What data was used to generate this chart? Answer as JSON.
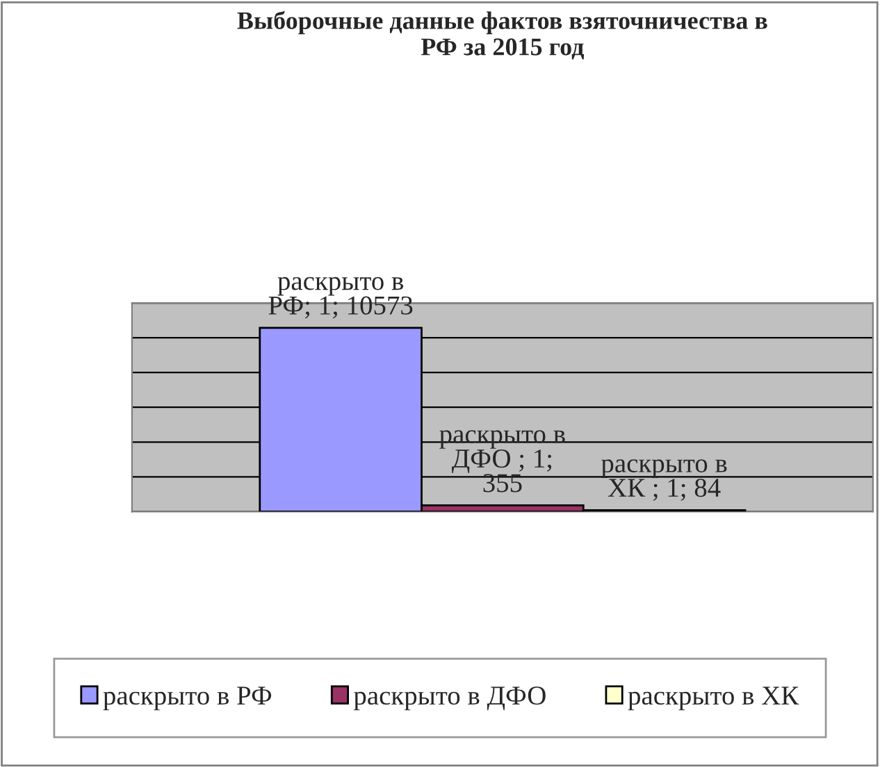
{
  "chart_data": {
    "type": "bar",
    "title": "Выборочные данные фактов взяточничества в\nРФ за 2015 год",
    "categories": [
      null
    ],
    "series": [
      {
        "name": "раскрыто в РФ",
        "color": "#9999ff",
        "values": [
          10573
        ],
        "value_labels": [
          "раскрыто в\nРФ; 1; 10573"
        ]
      },
      {
        "name": "раскрыто в ДФО",
        "color": "#993366",
        "values": [
          355
        ],
        "value_labels": [
          "раскрыто в\nДФО ; 1;\n355"
        ]
      },
      {
        "name": "раскрыто в ХК",
        "color": "#ffffcc",
        "values": [
          84
        ],
        "value_labels": [
          "раскрыто в\nХК ; 1; 84"
        ]
      }
    ],
    "ylim": [
      0,
      12000
    ],
    "yticks": [
      {
        "value": 0,
        "label": null
      },
      {
        "value": 2000,
        "label": null
      },
      {
        "value": 4000,
        "label": null
      },
      {
        "value": 6000,
        "label": null
      },
      {
        "value": 8000,
        "label": null
      },
      {
        "value": 10000,
        "label": null
      },
      {
        "value": 12000,
        "label": null
      }
    ],
    "grid": "y",
    "legend": "bottom"
  }
}
